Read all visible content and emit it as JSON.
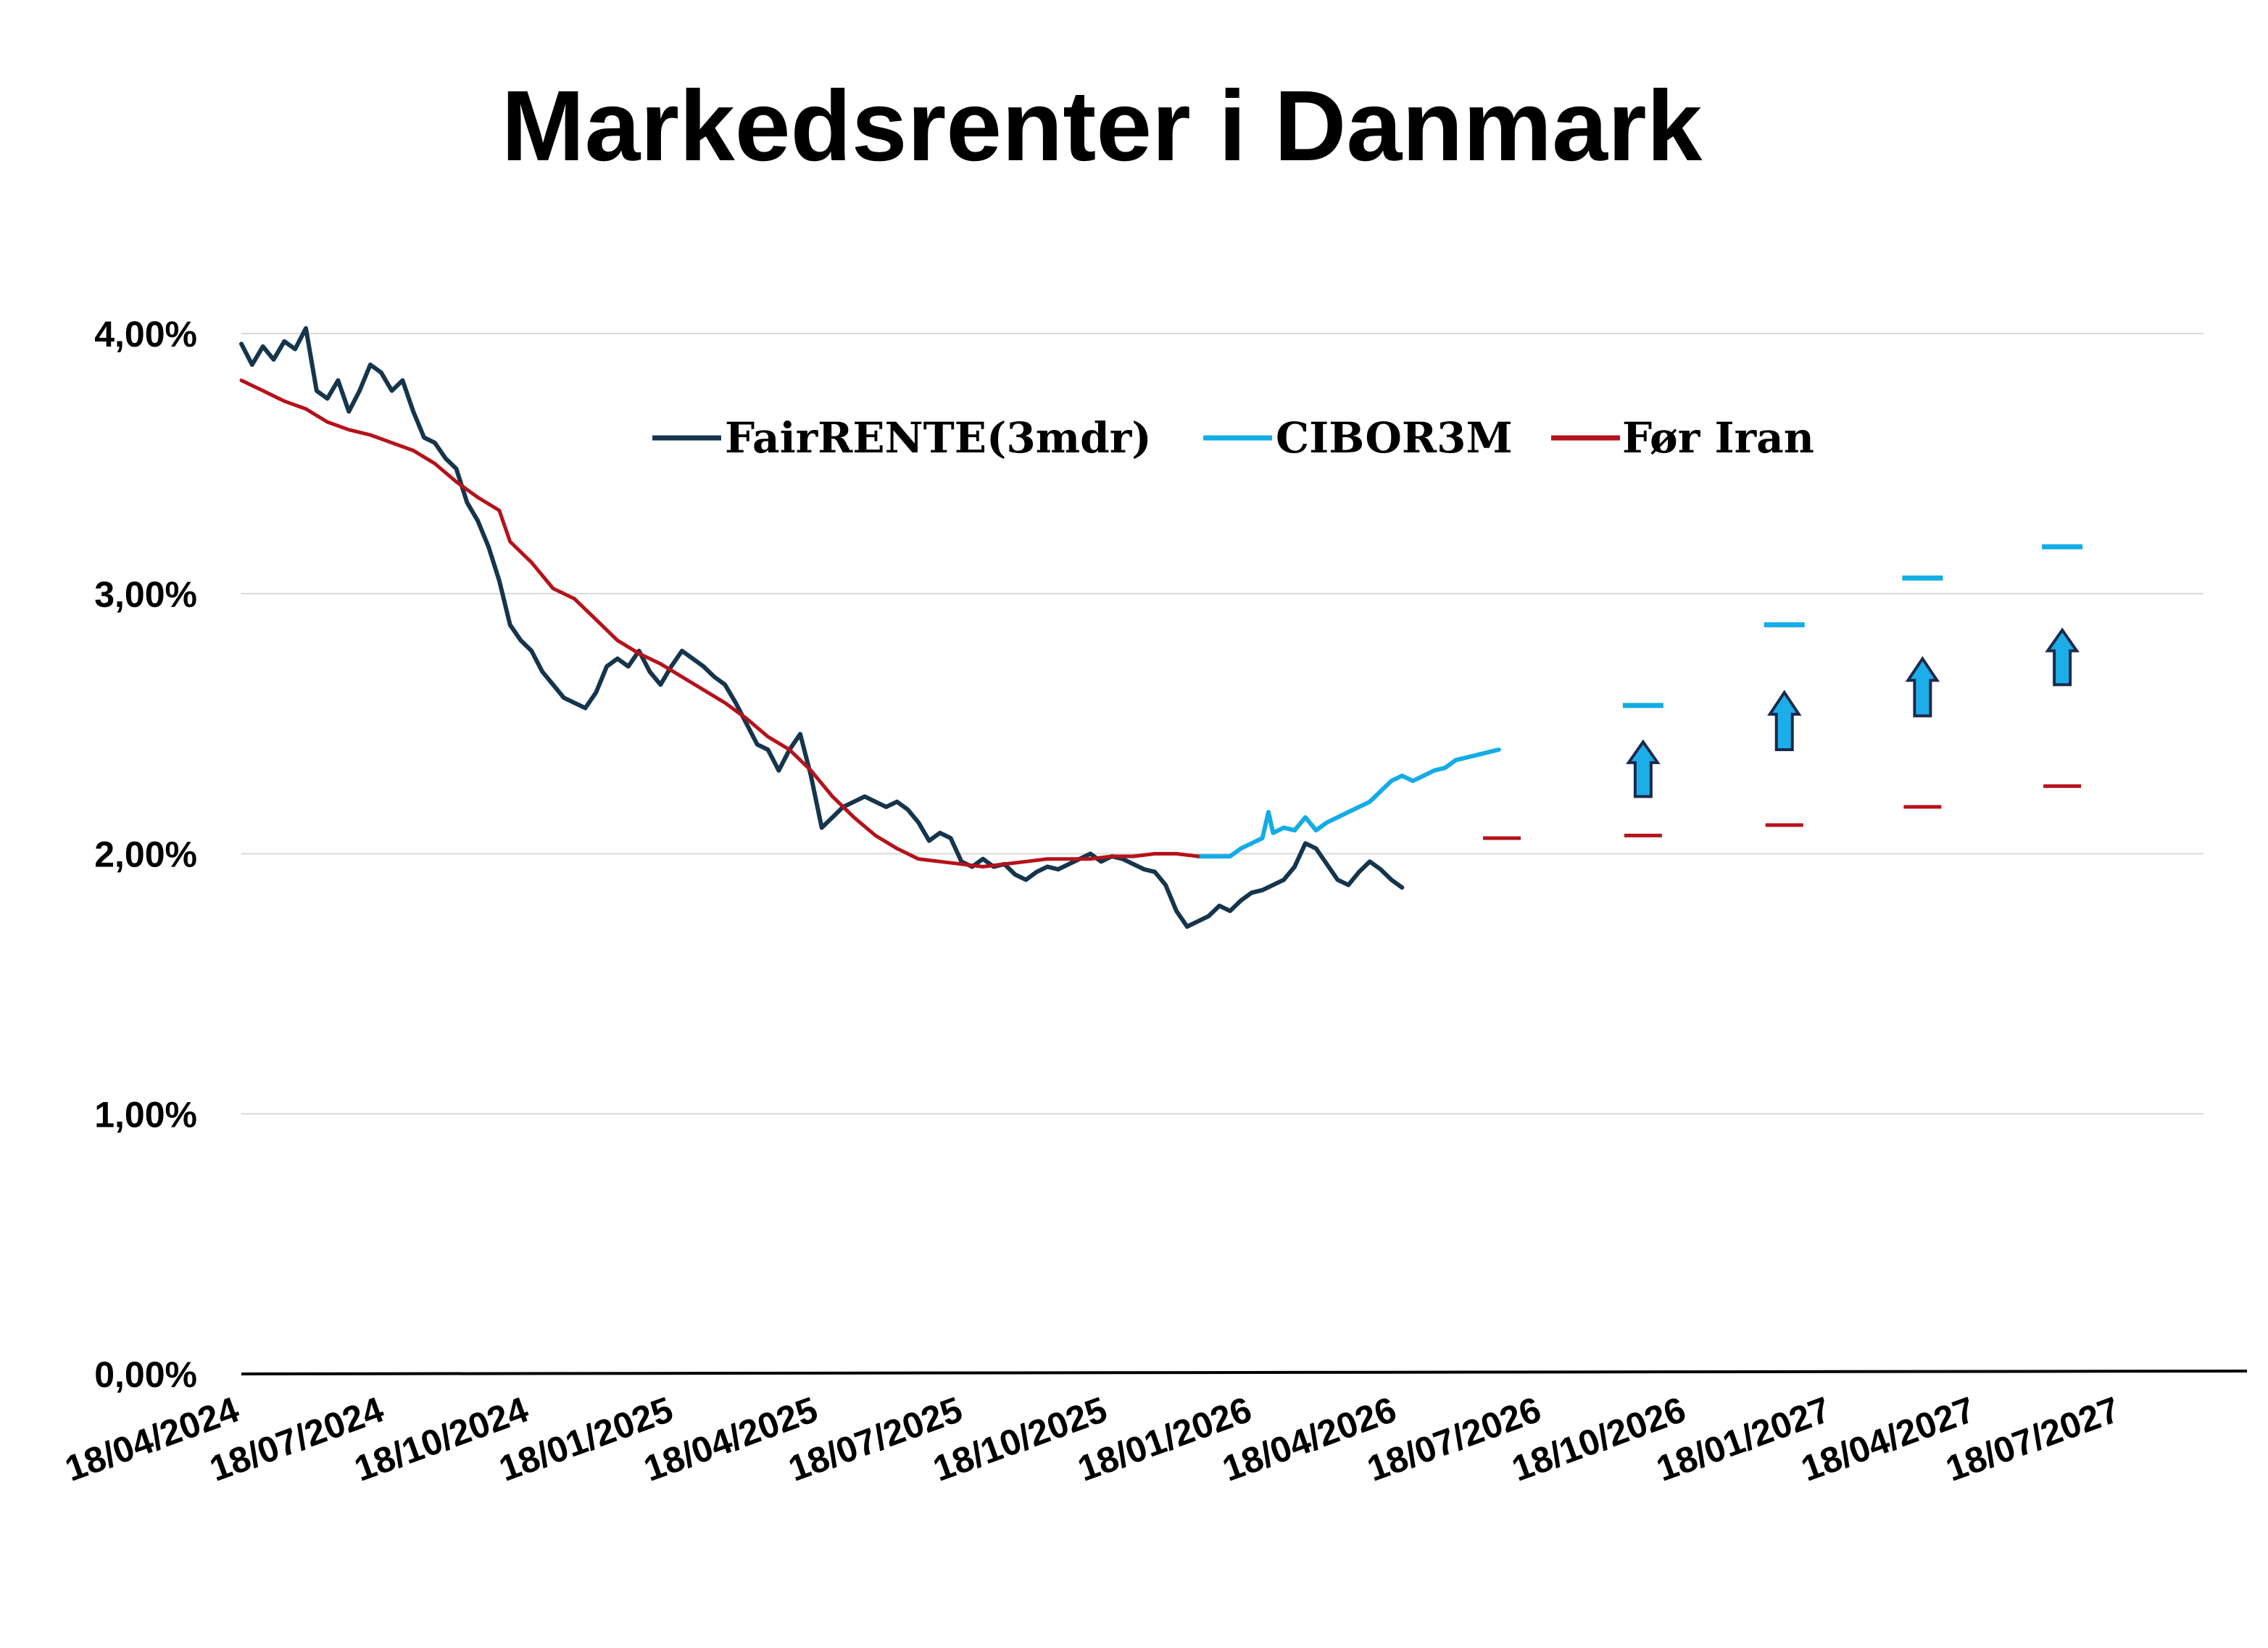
{
  "chart_data": {
    "type": "line",
    "title": "Markedsrenter i Danmark",
    "xlabel": "",
    "ylabel": "",
    "ylim": [
      0,
      4
    ],
    "y_ticks": [
      "0,00%",
      "1,00%",
      "2,00%",
      "3,00%",
      "4,00%"
    ],
    "x_ticks": [
      "18/04/2024",
      "18/07/2024",
      "18/10/2024",
      "18/01/2025",
      "18/04/2025",
      "18/07/2025",
      "18/10/2025",
      "18/01/2026",
      "18/04/2026",
      "18/07/2026",
      "18/10/2026",
      "18/01/2027",
      "18/04/2027",
      "18/07/2027"
    ],
    "x_range": [
      "2024-04-18",
      "2027-10-18"
    ],
    "grid": true,
    "legend_position": "top-center",
    "colors": {
      "FairRENTE(3mdr)": "#15354d",
      "CIBOR3M": "#14ace6",
      "Før Iran": "#b5121b",
      "arrow_fill": "#1caee9",
      "arrow_stroke": "#1a2a4a",
      "grid": "#d9d9d9"
    },
    "series": [
      {
        "name": "FairRENTE(3mdr)",
        "points": [
          [
            "2024-04-18",
            3.96
          ],
          [
            "2024-04-25",
            3.88
          ],
          [
            "2024-05-02",
            3.95
          ],
          [
            "2024-05-09",
            3.9
          ],
          [
            "2024-05-16",
            3.97
          ],
          [
            "2024-05-23",
            3.94
          ],
          [
            "2024-05-30",
            4.02
          ],
          [
            "2024-06-06",
            3.78
          ],
          [
            "2024-06-13",
            3.75
          ],
          [
            "2024-06-20",
            3.82
          ],
          [
            "2024-06-27",
            3.7
          ],
          [
            "2024-07-04",
            3.78
          ],
          [
            "2024-07-11",
            3.88
          ],
          [
            "2024-07-18",
            3.85
          ],
          [
            "2024-07-25",
            3.78
          ],
          [
            "2024-08-01",
            3.82
          ],
          [
            "2024-08-08",
            3.7
          ],
          [
            "2024-08-15",
            3.6
          ],
          [
            "2024-08-22",
            3.58
          ],
          [
            "2024-08-29",
            3.52
          ],
          [
            "2024-09-05",
            3.48
          ],
          [
            "2024-09-12",
            3.35
          ],
          [
            "2024-09-19",
            3.28
          ],
          [
            "2024-09-26",
            3.18
          ],
          [
            "2024-10-03",
            3.05
          ],
          [
            "2024-10-10",
            2.88
          ],
          [
            "2024-10-17",
            2.82
          ],
          [
            "2024-10-24",
            2.78
          ],
          [
            "2024-10-31",
            2.7
          ],
          [
            "2024-11-07",
            2.65
          ],
          [
            "2024-11-14",
            2.6
          ],
          [
            "2024-11-21",
            2.58
          ],
          [
            "2024-11-28",
            2.56
          ],
          [
            "2024-12-05",
            2.62
          ],
          [
            "2024-12-12",
            2.72
          ],
          [
            "2024-12-19",
            2.75
          ],
          [
            "2024-12-26",
            2.72
          ],
          [
            "2025-01-02",
            2.78
          ],
          [
            "2025-01-09",
            2.7
          ],
          [
            "2025-01-16",
            2.65
          ],
          [
            "2025-01-23",
            2.72
          ],
          [
            "2025-01-30",
            2.78
          ],
          [
            "2025-02-06",
            2.75
          ],
          [
            "2025-02-13",
            2.72
          ],
          [
            "2025-02-20",
            2.68
          ],
          [
            "2025-02-27",
            2.65
          ],
          [
            "2025-03-06",
            2.58
          ],
          [
            "2025-03-13",
            2.5
          ],
          [
            "2025-03-20",
            2.42
          ],
          [
            "2025-03-27",
            2.4
          ],
          [
            "2025-04-03",
            2.32
          ],
          [
            "2025-04-10",
            2.4
          ],
          [
            "2025-04-17",
            2.46
          ],
          [
            "2025-04-24",
            2.3
          ],
          [
            "2025-05-01",
            2.1
          ],
          [
            "2025-05-08",
            2.14
          ],
          [
            "2025-05-15",
            2.18
          ],
          [
            "2025-05-22",
            2.2
          ],
          [
            "2025-05-29",
            2.22
          ],
          [
            "2025-06-05",
            2.2
          ],
          [
            "2025-06-12",
            2.18
          ],
          [
            "2025-06-19",
            2.2
          ],
          [
            "2025-06-26",
            2.17
          ],
          [
            "2025-07-03",
            2.12
          ],
          [
            "2025-07-10",
            2.05
          ],
          [
            "2025-07-17",
            2.08
          ],
          [
            "2025-07-24",
            2.06
          ],
          [
            "2025-07-31",
            1.97
          ],
          [
            "2025-08-07",
            1.95
          ],
          [
            "2025-08-14",
            1.98
          ],
          [
            "2025-08-21",
            1.95
          ],
          [
            "2025-08-28",
            1.96
          ],
          [
            "2025-09-04",
            1.92
          ],
          [
            "2025-09-11",
            1.9
          ],
          [
            "2025-09-18",
            1.93
          ],
          [
            "2025-09-25",
            1.95
          ],
          [
            "2025-10-02",
            1.94
          ],
          [
            "2025-10-09",
            1.96
          ],
          [
            "2025-10-16",
            1.98
          ],
          [
            "2025-10-23",
            2.0
          ],
          [
            "2025-10-30",
            1.97
          ],
          [
            "2025-11-06",
            1.99
          ],
          [
            "2025-11-13",
            1.98
          ],
          [
            "2025-11-20",
            1.96
          ],
          [
            "2025-11-27",
            1.94
          ],
          [
            "2025-12-04",
            1.93
          ],
          [
            "2025-12-11",
            1.88
          ],
          [
            "2025-12-18",
            1.78
          ],
          [
            "2025-12-25",
            1.72
          ],
          [
            "2026-01-01",
            1.74
          ],
          [
            "2026-01-08",
            1.76
          ],
          [
            "2026-01-15",
            1.8
          ],
          [
            "2026-01-22",
            1.78
          ],
          [
            "2026-01-29",
            1.82
          ],
          [
            "2026-02-05",
            1.85
          ],
          [
            "2026-02-12",
            1.86
          ],
          [
            "2026-02-19",
            1.88
          ],
          [
            "2026-02-26",
            1.9
          ],
          [
            "2026-03-05",
            1.95
          ],
          [
            "2026-03-12",
            2.04
          ],
          [
            "2026-03-19",
            2.02
          ],
          [
            "2026-03-26",
            1.96
          ],
          [
            "2026-04-02",
            1.9
          ],
          [
            "2026-04-09",
            1.88
          ],
          [
            "2026-04-16",
            1.93
          ],
          [
            "2026-04-23",
            1.97
          ],
          [
            "2026-04-30",
            1.94
          ],
          [
            "2026-05-07",
            1.9
          ],
          [
            "2026-05-14",
            1.87
          ]
        ]
      },
      {
        "name": "CIBOR3M",
        "points": [
          [
            "2026-01-01",
            1.99
          ],
          [
            "2026-01-08",
            1.99
          ],
          [
            "2026-01-15",
            1.99
          ],
          [
            "2026-01-22",
            1.99
          ],
          [
            "2026-01-29",
            2.02
          ],
          [
            "2026-02-05",
            2.04
          ],
          [
            "2026-02-12",
            2.06
          ],
          [
            "2026-02-16",
            2.16
          ],
          [
            "2026-02-19",
            2.08
          ],
          [
            "2026-02-26",
            2.1
          ],
          [
            "2026-03-05",
            2.09
          ],
          [
            "2026-03-12",
            2.14
          ],
          [
            "2026-03-19",
            2.09
          ],
          [
            "2026-03-26",
            2.12
          ],
          [
            "2026-04-02",
            2.14
          ],
          [
            "2026-04-09",
            2.16
          ],
          [
            "2026-04-16",
            2.18
          ],
          [
            "2026-04-23",
            2.2
          ],
          [
            "2026-04-30",
            2.24
          ],
          [
            "2026-05-07",
            2.28
          ],
          [
            "2026-05-14",
            2.3
          ],
          [
            "2026-05-21",
            2.28
          ],
          [
            "2026-05-28",
            2.3
          ],
          [
            "2026-06-04",
            2.32
          ],
          [
            "2026-06-11",
            2.33
          ],
          [
            "2026-06-18",
            2.36
          ],
          [
            "2026-06-25",
            2.37
          ],
          [
            "2026-07-02",
            2.38
          ],
          [
            "2026-07-09",
            2.39
          ],
          [
            "2026-07-16",
            2.4
          ]
        ]
      },
      {
        "name": "Før Iran",
        "points": [
          [
            "2024-04-18",
            3.82
          ],
          [
            "2024-05-02",
            3.78
          ],
          [
            "2024-05-16",
            3.74
          ],
          [
            "2024-05-30",
            3.71
          ],
          [
            "2024-06-13",
            3.66
          ],
          [
            "2024-06-27",
            3.63
          ],
          [
            "2024-07-11",
            3.61
          ],
          [
            "2024-07-25",
            3.58
          ],
          [
            "2024-08-08",
            3.55
          ],
          [
            "2024-08-22",
            3.5
          ],
          [
            "2024-09-05",
            3.43
          ],
          [
            "2024-09-19",
            3.37
          ],
          [
            "2024-10-03",
            3.32
          ],
          [
            "2024-10-10",
            3.2
          ],
          [
            "2024-10-24",
            3.12
          ],
          [
            "2024-11-07",
            3.02
          ],
          [
            "2024-11-21",
            2.98
          ],
          [
            "2024-12-05",
            2.9
          ],
          [
            "2024-12-19",
            2.82
          ],
          [
            "2025-01-02",
            2.77
          ],
          [
            "2025-01-16",
            2.73
          ],
          [
            "2025-01-30",
            2.68
          ],
          [
            "2025-02-13",
            2.63
          ],
          [
            "2025-02-27",
            2.58
          ],
          [
            "2025-03-13",
            2.52
          ],
          [
            "2025-03-27",
            2.45
          ],
          [
            "2025-04-10",
            2.4
          ],
          [
            "2025-04-24",
            2.32
          ],
          [
            "2025-05-08",
            2.22
          ],
          [
            "2025-05-22",
            2.14
          ],
          [
            "2025-06-05",
            2.07
          ],
          [
            "2025-06-19",
            2.02
          ],
          [
            "2025-07-03",
            1.98
          ],
          [
            "2025-07-17",
            1.97
          ],
          [
            "2025-07-31",
            1.96
          ],
          [
            "2025-08-14",
            1.95
          ],
          [
            "2025-08-28",
            1.96
          ],
          [
            "2025-09-11",
            1.97
          ],
          [
            "2025-09-25",
            1.98
          ],
          [
            "2025-10-09",
            1.98
          ],
          [
            "2025-10-23",
            1.98
          ],
          [
            "2025-11-06",
            1.99
          ],
          [
            "2025-11-20",
            1.99
          ],
          [
            "2025-12-04",
            2.0
          ],
          [
            "2025-12-18",
            2.0
          ],
          [
            "2026-01-01",
            1.99
          ]
        ]
      }
    ],
    "forecast_markers": [
      {
        "date": "2026-07-18",
        "Før Iran": 2.06
      },
      {
        "date": "2026-10-18",
        "CIBOR3M": 2.57,
        "Før Iran": 2.07,
        "arrow": [
          2.22,
          2.43
        ]
      },
      {
        "date": "2027-01-18",
        "CIBOR3M": 2.88,
        "Før Iran": 2.11,
        "arrow": [
          2.4,
          2.62
        ]
      },
      {
        "date": "2027-04-18",
        "CIBOR3M": 3.06,
        "Før Iran": 2.18,
        "arrow": [
          2.53,
          2.75
        ]
      },
      {
        "date": "2027-07-18",
        "CIBOR3M": 3.18,
        "Før Iran": 2.26,
        "arrow": [
          2.65,
          2.86
        ]
      }
    ]
  }
}
